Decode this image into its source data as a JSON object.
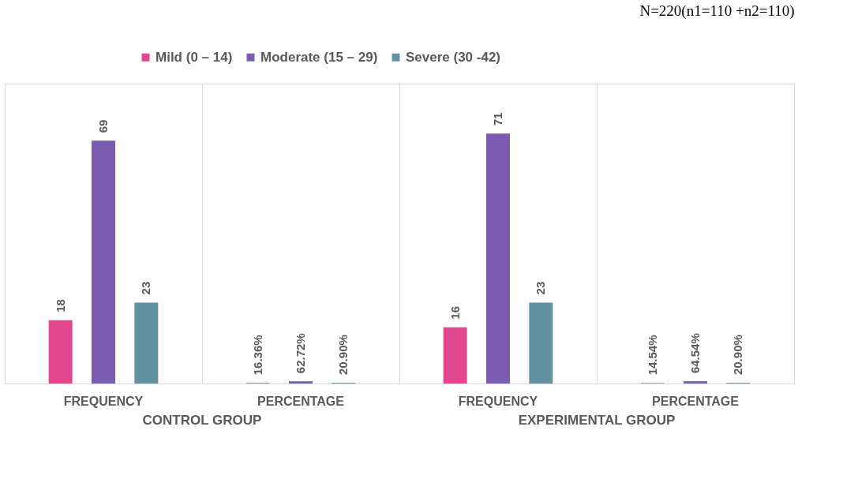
{
  "chart_data": {
    "type": "bar",
    "subtitle": "N=220(n1=110 +n2=110)",
    "categories": [
      "FREQUENCY",
      "PERCENTAGE",
      "FREQUENCY",
      "PERCENTAGE"
    ],
    "series": [
      {
        "name": "Mild (0 – 14)",
        "color": "#e0478f",
        "values": [
          18,
          0.1636,
          16,
          0.1454
        ],
        "value_labels": [
          "18",
          "16.36%",
          "16",
          "14.54%"
        ]
      },
      {
        "name": "Moderate (15 – 29)",
        "color": "#7a5db1",
        "values": [
          69,
          0.6272,
          71,
          0.6454
        ],
        "value_labels": [
          "69",
          "62.72%",
          "71",
          "64.54%"
        ]
      },
      {
        "name": "Severe (30 -42)",
        "color": "#6592a0",
        "values": [
          23,
          0.209,
          23,
          0.209
        ],
        "value_labels": [
          "23",
          "20.90%",
          "23",
          "20.90%"
        ]
      }
    ],
    "annotations": [
      "CONTROL GROUP",
      "EXPERIMENTAL GROUP"
    ],
    "tick_labels": "x",
    "grid": "x",
    "legend": "top"
  }
}
